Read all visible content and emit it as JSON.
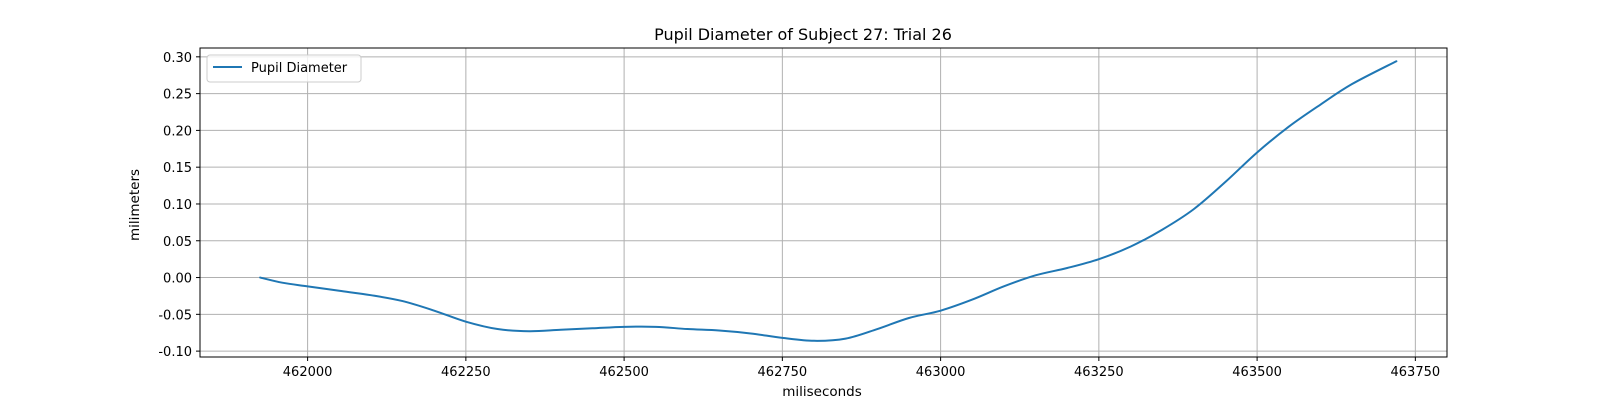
{
  "chart_data": {
    "type": "line",
    "title": "Pupil Diameter of Subject 27: Trial 26",
    "xlabel": "miliseconds",
    "ylabel": "milimeters",
    "xlim": [
      461830,
      463800
    ],
    "ylim": [
      -0.108,
      0.312
    ],
    "xticks": [
      462000,
      462250,
      462500,
      462750,
      463000,
      463250,
      463500,
      463750
    ],
    "yticks": [
      -0.1,
      -0.05,
      0.0,
      0.05,
      0.1,
      0.15,
      0.2,
      0.25,
      0.3
    ],
    "grid": true,
    "legend_position": "upper-left",
    "line_color": "#1f77b4",
    "series": [
      {
        "name": "Pupil Diameter",
        "x": [
          461925,
          461960,
          462000,
          462050,
          462100,
          462150,
          462200,
          462250,
          462300,
          462350,
          462400,
          462450,
          462500,
          462550,
          462600,
          462650,
          462700,
          462750,
          462800,
          462850,
          462900,
          462950,
          463000,
          463050,
          463100,
          463150,
          463200,
          463250,
          463300,
          463350,
          463400,
          463450,
          463500,
          463550,
          463600,
          463650,
          463720
        ],
        "y": [
          0.0,
          -0.007,
          -0.012,
          -0.018,
          -0.024,
          -0.032,
          -0.045,
          -0.06,
          -0.07,
          -0.073,
          -0.071,
          -0.069,
          -0.067,
          -0.067,
          -0.07,
          -0.072,
          -0.076,
          -0.082,
          -0.086,
          -0.083,
          -0.07,
          -0.055,
          -0.045,
          -0.03,
          -0.012,
          0.003,
          0.013,
          0.025,
          0.042,
          0.065,
          0.093,
          0.13,
          0.17,
          0.205,
          0.235,
          0.263,
          0.294
        ]
      }
    ]
  }
}
